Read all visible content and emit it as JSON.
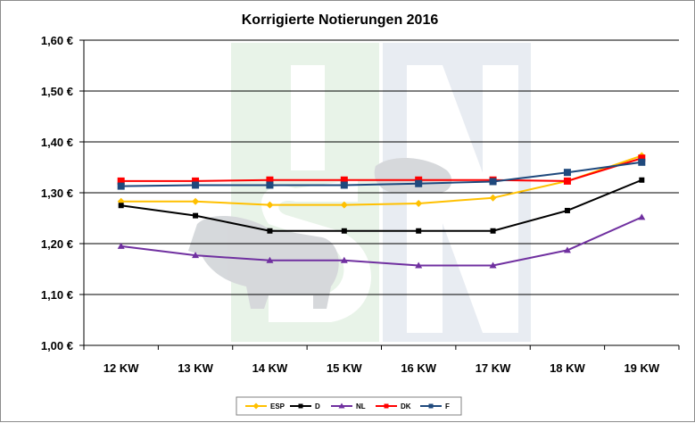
{
  "chart_data": {
    "type": "line",
    "title": "Korrigierte Notierungen 2016",
    "categories": [
      "12 KW",
      "13 KW",
      "14 KW",
      "15 KW",
      "16 KW",
      "17 KW",
      "18 KW",
      "19 KW"
    ],
    "y_ticks": [
      "1,00 €",
      "1,10 €",
      "1,20 €",
      "1,30 €",
      "1,40 €",
      "1,50 €",
      "1,60 €"
    ],
    "ylim": [
      1.0,
      1.6
    ],
    "grid": "horizontal",
    "legend_position": "bottom",
    "watermark": "ISN",
    "series": [
      {
        "name": "ESP",
        "color": "#ffc000",
        "marker": "diamond",
        "values": [
          1.283,
          1.283,
          1.276,
          1.276,
          1.279,
          1.29,
          1.323,
          1.373
        ]
      },
      {
        "name": "D",
        "color": "#000000",
        "marker": "square",
        "values": [
          1.275,
          1.255,
          1.225,
          1.225,
          1.225,
          1.225,
          1.265,
          1.325
        ]
      },
      {
        "name": "NL",
        "color": "#7030a0",
        "marker": "triangle",
        "values": [
          1.195,
          1.177,
          1.167,
          1.167,
          1.157,
          1.157,
          1.187,
          1.252
        ]
      },
      {
        "name": "DK",
        "color": "#ff0000",
        "marker": "square",
        "values": [
          1.323,
          1.323,
          1.325,
          1.325,
          1.325,
          1.325,
          1.323,
          1.368
        ]
      },
      {
        "name": "F",
        "color": "#1f497d",
        "marker": "square",
        "values": [
          1.313,
          1.315,
          1.315,
          1.315,
          1.318,
          1.322,
          1.34,
          1.36
        ]
      }
    ]
  }
}
